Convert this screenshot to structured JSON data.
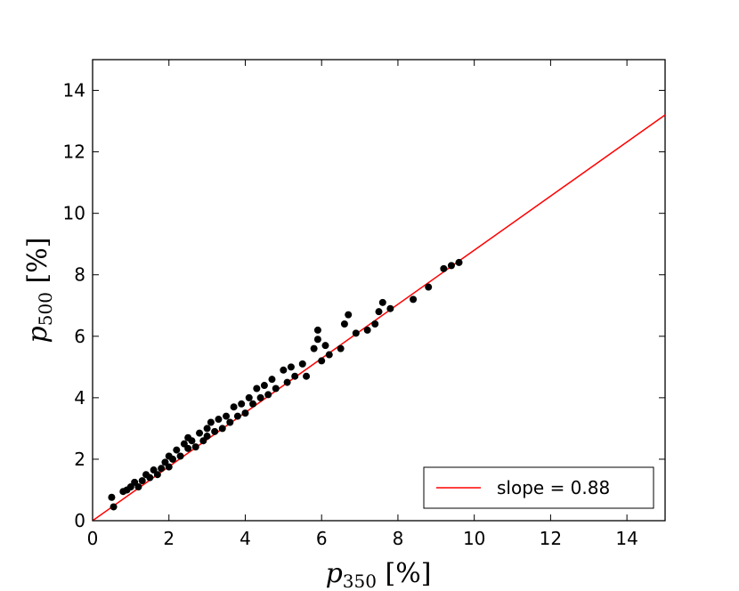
{
  "chart_data": {
    "type": "scatter",
    "title": "",
    "xlabel": "p_350 [%]",
    "ylabel": "p_500 [%]",
    "xlabel_parts": {
      "symbol": "p",
      "sub": "350",
      "unit": "[%]"
    },
    "ylabel_parts": {
      "symbol": "p",
      "sub": "500",
      "unit": "[%]"
    },
    "xlim": [
      0,
      15
    ],
    "ylim": [
      0,
      15
    ],
    "x_ticks": [
      0,
      2,
      4,
      6,
      8,
      10,
      12,
      14
    ],
    "y_ticks": [
      0,
      2,
      4,
      6,
      8,
      10,
      12,
      14
    ],
    "grid": false,
    "legend_position": "lower-right",
    "fit_line": {
      "label": "slope = 0.88",
      "slope": 0.88,
      "intercept": 0,
      "color": "#ff0000"
    },
    "series": [
      {
        "color": "#000000",
        "points": [
          [
            0.5,
            0.76
          ],
          [
            0.55,
            0.45
          ],
          [
            0.8,
            0.95
          ],
          [
            0.9,
            1.0
          ],
          [
            1.0,
            1.1
          ],
          [
            1.1,
            1.25
          ],
          [
            1.2,
            1.1
          ],
          [
            1.3,
            1.3
          ],
          [
            1.4,
            1.5
          ],
          [
            1.5,
            1.4
          ],
          [
            1.6,
            1.65
          ],
          [
            1.7,
            1.5
          ],
          [
            1.8,
            1.7
          ],
          [
            1.9,
            1.9
          ],
          [
            2.0,
            1.75
          ],
          [
            2.0,
            2.1
          ],
          [
            2.1,
            2.0
          ],
          [
            2.2,
            2.3
          ],
          [
            2.3,
            2.1
          ],
          [
            2.4,
            2.5
          ],
          [
            2.5,
            2.35
          ],
          [
            2.5,
            2.7
          ],
          [
            2.6,
            2.6
          ],
          [
            2.7,
            2.4
          ],
          [
            2.8,
            2.85
          ],
          [
            2.9,
            2.6
          ],
          [
            3.0,
            3.0
          ],
          [
            3.0,
            2.75
          ],
          [
            3.1,
            3.2
          ],
          [
            3.2,
            2.9
          ],
          [
            3.3,
            3.3
          ],
          [
            3.4,
            3.0
          ],
          [
            3.5,
            3.4
          ],
          [
            3.6,
            3.2
          ],
          [
            3.7,
            3.7
          ],
          [
            3.8,
            3.4
          ],
          [
            3.9,
            3.8
          ],
          [
            4.0,
            3.5
          ],
          [
            4.1,
            4.0
          ],
          [
            4.2,
            3.8
          ],
          [
            4.3,
            4.3
          ],
          [
            4.4,
            4.0
          ],
          [
            4.5,
            4.4
          ],
          [
            4.6,
            4.1
          ],
          [
            4.7,
            4.6
          ],
          [
            4.8,
            4.3
          ],
          [
            5.0,
            4.9
          ],
          [
            5.1,
            4.5
          ],
          [
            5.2,
            5.0
          ],
          [
            5.3,
            4.7
          ],
          [
            5.5,
            5.1
          ],
          [
            5.6,
            4.7
          ],
          [
            5.8,
            5.6
          ],
          [
            5.9,
            5.9
          ],
          [
            5.9,
            6.2
          ],
          [
            6.0,
            5.2
          ],
          [
            6.1,
            5.7
          ],
          [
            6.2,
            5.4
          ],
          [
            6.5,
            5.6
          ],
          [
            6.6,
            6.4
          ],
          [
            6.7,
            6.7
          ],
          [
            6.9,
            6.1
          ],
          [
            7.2,
            6.2
          ],
          [
            7.4,
            6.4
          ],
          [
            7.5,
            6.8
          ],
          [
            7.6,
            7.1
          ],
          [
            7.8,
            6.9
          ],
          [
            8.4,
            7.2
          ],
          [
            8.8,
            7.6
          ],
          [
            9.2,
            8.2
          ],
          [
            9.4,
            8.3
          ],
          [
            9.6,
            8.4
          ]
        ]
      }
    ]
  }
}
